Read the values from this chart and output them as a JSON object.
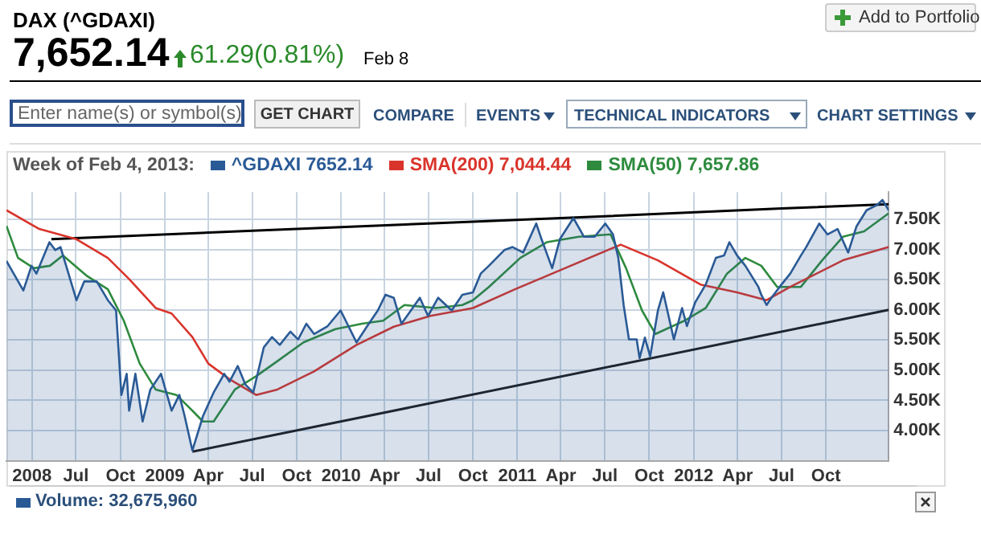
{
  "chart_data": {
    "type": "line",
    "title": "DAX (^GDAXI)",
    "legend_title": "Week of Feb 4, 2013:",
    "legend": "top left",
    "grid": true,
    "marker": "none",
    "line_style": "solid",
    "annotations": [
      "7,652.14",
      "61.29(0.81%)",
      "Feb 8",
      "Add to Portfolio",
      "Enter name(s) or symbol(s)",
      "GET CHART",
      "COMPARE",
      "EVENTS",
      "TECHNICAL INDICATORS",
      "CHART SETTINGS",
      "Volume: 32,675,960"
    ],
    "xlim": [
      "2008-02-08",
      "2013-02-08"
    ],
    "xticks": [
      {
        "value": "2008-04-01",
        "label": "2008"
      },
      {
        "value": "2008-07-01",
        "label": "Jul"
      },
      {
        "value": "2008-10-01",
        "label": "Oct"
      },
      {
        "value": "2009-01-01",
        "label": "2009"
      },
      {
        "value": "2009-04-01",
        "label": "Apr"
      },
      {
        "value": "2009-07-01",
        "label": "Jul"
      },
      {
        "value": "2009-10-01",
        "label": "Oct"
      },
      {
        "value": "2010-01-01",
        "label": "2010"
      },
      {
        "value": "2010-04-01",
        "label": "Apr"
      },
      {
        "value": "2010-07-01",
        "label": "Jul"
      },
      {
        "value": "2010-10-01",
        "label": "Oct"
      },
      {
        "value": "2011-01-01",
        "label": "2011"
      },
      {
        "value": "2011-04-01",
        "label": "Apr"
      },
      {
        "value": "2011-07-01",
        "label": "Jul"
      },
      {
        "value": "2011-10-01",
        "label": "Oct"
      },
      {
        "value": "2012-01-01",
        "label": "2012"
      },
      {
        "value": "2012-04-01",
        "label": "Apr"
      },
      {
        "value": "2012-07-01",
        "label": "Jul"
      },
      {
        "value": "2012-10-01",
        "label": "Oct"
      }
    ],
    "ylim": [
      3500,
      7950
    ],
    "yticks": [
      {
        "value": 4000,
        "label": "4.00K"
      },
      {
        "value": 4500,
        "label": "4.50K"
      },
      {
        "value": 5000,
        "label": "5.00K"
      },
      {
        "value": 5500,
        "label": "5.50K"
      },
      {
        "value": 6000,
        "label": "6.00K"
      },
      {
        "value": 6500,
        "label": "6.50K"
      },
      {
        "value": 7000,
        "label": "7.00K"
      },
      {
        "value": 7500,
        "label": "7.50K"
      }
    ],
    "series": [
      {
        "name": "^GDAXI 7652.14",
        "type": "area",
        "color": "#2a5a96",
        "x": [
          "2008-02-08",
          "2008-03-14",
          "2008-03-31",
          "2008-04-10",
          "2008-05-07",
          "2008-05-19",
          "2008-05-30",
          "2008-07-02",
          "2008-07-18",
          "2008-08-13",
          "2008-09-05",
          "2008-09-22",
          "2008-10-03",
          "2008-10-14",
          "2008-10-19",
          "2008-11-01",
          "2008-11-16",
          "2008-12-02",
          "2008-12-24",
          "2009-01-15",
          "2009-01-31",
          "2009-02-11",
          "2009-02-27",
          "2009-03-21",
          "2009-04-12",
          "2009-05-04",
          "2009-05-15",
          "2009-06-01",
          "2009-06-17",
          "2009-07-03",
          "2009-07-25",
          "2009-08-11",
          "2009-08-27",
          "2009-09-18",
          "2009-10-04",
          "2009-10-21",
          "2009-11-06",
          "2009-12-04",
          "2009-12-31",
          "2010-02-02",
          "2010-02-24",
          "2010-03-18",
          "2010-04-03",
          "2010-04-20",
          "2010-05-06",
          "2010-05-22",
          "2010-06-13",
          "2010-06-30",
          "2010-07-21",
          "2010-08-18",
          "2010-09-09",
          "2010-10-01",
          "2010-10-17",
          "2010-11-03",
          "2010-12-05",
          "2010-12-22",
          "2011-01-13",
          "2011-02-09",
          "2011-02-20",
          "2011-03-14",
          "2011-03-30",
          "2011-04-27",
          "2011-05-19",
          "2011-06-10",
          "2011-07-02",
          "2011-07-18",
          "2011-07-29",
          "2011-08-09",
          "2011-08-20",
          "2011-09-05",
          "2011-09-11",
          "2011-09-22",
          "2011-10-03",
          "2011-10-19",
          "2011-10-30",
          "2011-11-10",
          "2011-11-21",
          "2011-12-08",
          "2011-12-18",
          "2012-01-04",
          "2012-01-26",
          "2012-02-16",
          "2012-03-04",
          "2012-03-15",
          "2012-03-31",
          "2012-04-17",
          "2012-05-14",
          "2012-05-20",
          "2012-05-31",
          "2012-06-10",
          "2012-06-27",
          "2012-07-19",
          "2012-08-10",
          "2012-08-21",
          "2012-09-17",
          "2012-10-04",
          "2012-10-25",
          "2012-11-16",
          "2012-12-03",
          "2012-12-24",
          "2013-01-15",
          "2013-01-26",
          "2013-02-08"
        ],
        "values": [
          6810,
          6320,
          6730,
          6600,
          7120,
          6990,
          7040,
          6160,
          6470,
          6470,
          6160,
          5990,
          4590,
          4940,
          4330,
          4940,
          4150,
          4680,
          4940,
          4330,
          4590,
          4240,
          3670,
          4240,
          4630,
          4940,
          4810,
          5070,
          4760,
          4630,
          5380,
          5550,
          5420,
          5640,
          5510,
          5770,
          5600,
          5730,
          5990,
          5460,
          5730,
          5990,
          6250,
          6200,
          5770,
          5950,
          6200,
          5900,
          6200,
          5990,
          6250,
          6290,
          6600,
          6730,
          6990,
          7040,
          6950,
          7430,
          7170,
          6690,
          7170,
          7520,
          7210,
          7210,
          7430,
          7250,
          6860,
          6080,
          5510,
          5510,
          5200,
          5540,
          5230,
          5990,
          6290,
          5900,
          5510,
          6030,
          5730,
          6120,
          6420,
          6860,
          6900,
          7120,
          6900,
          6730,
          6380,
          6250,
          6080,
          6200,
          6380,
          6600,
          6900,
          7040,
          7430,
          7250,
          7340,
          6950,
          7380,
          7650,
          7740,
          7820,
          7650
        ]
      },
      {
        "name": "SMA(200) 7,044.44",
        "type": "line",
        "color": "#d9342b",
        "x": [
          "2008-02-08",
          "2008-04-16",
          "2008-07-02",
          "2008-09-05",
          "2008-10-19",
          "2008-12-13",
          "2009-01-15",
          "2009-02-27",
          "2009-04-01",
          "2009-05-15",
          "2009-07-09",
          "2009-08-22",
          "2009-11-06",
          "2010-02-02",
          "2010-04-20",
          "2010-07-05",
          "2010-10-01",
          "2010-12-27",
          "2011-03-14",
          "2011-08-03",
          "2011-10-19",
          "2012-01-15",
          "2012-03-31",
          "2012-05-31",
          "2012-07-19",
          "2012-11-05",
          "2013-02-08"
        ],
        "values": [
          7650,
          7340,
          7170,
          6860,
          6510,
          6030,
          5940,
          5550,
          5110,
          4850,
          4590,
          4680,
          4980,
          5420,
          5720,
          5900,
          6030,
          6340,
          6600,
          7080,
          6820,
          6420,
          6290,
          6160,
          6380,
          6820,
          7040
        ]
      },
      {
        "name": "SMA(50) 7,657.86",
        "type": "line",
        "color": "#2e8b3e",
        "x": [
          "2008-02-08",
          "2008-03-03",
          "2008-04-05",
          "2008-05-08",
          "2008-06-04",
          "2008-07-24",
          "2008-09-05",
          "2008-10-08",
          "2008-11-10",
          "2008-12-13",
          "2009-01-25",
          "2009-02-27",
          "2009-03-21",
          "2009-04-12",
          "2009-05-26",
          "2009-07-09",
          "2009-08-22",
          "2009-10-15",
          "2009-12-20",
          "2010-02-13",
          "2010-03-29",
          "2010-05-12",
          "2010-07-16",
          "2010-09-09",
          "2010-10-01",
          "2010-11-03",
          "2011-01-07",
          "2011-03-03",
          "2011-05-08",
          "2011-07-13",
          "2011-08-14",
          "2011-09-16",
          "2011-10-14",
          "2011-12-13",
          "2012-01-26",
          "2012-03-10",
          "2012-04-17",
          "2012-05-20",
          "2012-06-22",
          "2012-08-10",
          "2012-09-23",
          "2012-11-05",
          "2012-12-19",
          "2013-02-08"
        ],
        "values": [
          7390,
          6860,
          6690,
          6730,
          6900,
          6560,
          6340,
          5820,
          5110,
          4680,
          4590,
          4330,
          4150,
          4150,
          4680,
          4900,
          5150,
          5460,
          5680,
          5770,
          5820,
          6080,
          6030,
          6080,
          6160,
          6380,
          6860,
          7120,
          7210,
          7250,
          6690,
          5990,
          5600,
          5820,
          6030,
          6600,
          6860,
          6730,
          6380,
          6380,
          6820,
          7210,
          7300,
          7600
        ]
      },
      {
        "type": "line",
        "color": "#000000",
        "x": [
          "2008-05-11",
          "2009-07-01",
          "2010-07-01",
          "2011-07-01",
          "2012-07-01",
          "2013-02-08"
        ],
        "values": [
          7170,
          7310,
          7430,
          7550,
          7680,
          7750
        ]
      },
      {
        "type": "line",
        "color": "#1a1a1a",
        "x": [
          "2009-02-27",
          "2013-02-08"
        ],
        "values": [
          3650,
          6000
        ]
      }
    ]
  }
}
